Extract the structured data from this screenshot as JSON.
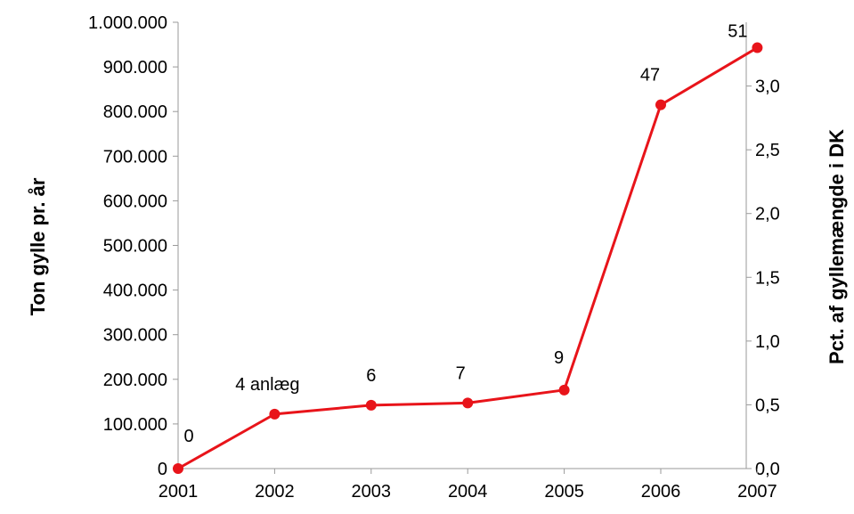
{
  "chart_data": {
    "type": "line",
    "x": [
      "2001",
      "2002",
      "2003",
      "2004",
      "2005",
      "2006",
      "2007"
    ],
    "series": [
      {
        "values": [
          0,
          122000,
          142000,
          147000,
          176000,
          815000,
          943000
        ]
      }
    ],
    "data_labels": [
      "0",
      "4 anlæg",
      "6",
      "7",
      "9",
      "47",
      "51"
    ],
    "ylabel": "Ton gylle pr. år",
    "y2label": "Pct. af gyllemængde i DK",
    "ylim": [
      0,
      1000000
    ],
    "y2lim": [
      0,
      3.5
    ],
    "yticks": [
      "0",
      "100.000",
      "200.000",
      "300.000",
      "400.000",
      "500.000",
      "600.000",
      "700.000",
      "800.000",
      "900.000",
      "1.000.000"
    ],
    "y2ticks": [
      "0,0",
      "0,5",
      "1,0",
      "1,5",
      "2,0",
      "2,5",
      "3,0"
    ],
    "grid": false,
    "line_color": "#e8141a"
  }
}
